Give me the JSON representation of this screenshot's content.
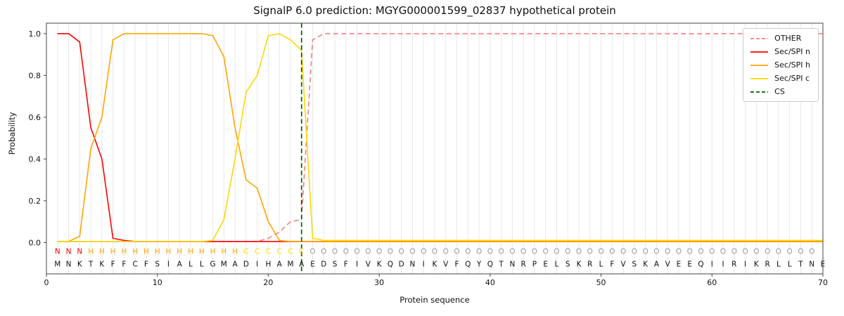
{
  "chart_data": {
    "type": "line",
    "title": "SignalP 6.0 prediction: MGYG000001599_02837 hypothetical protein",
    "xlabel": "Protein sequence",
    "ylabel": "Probability",
    "xlim": [
      0,
      70
    ],
    "ylim": [
      -0.15,
      1.05
    ],
    "xticks": [
      0,
      10,
      20,
      30,
      40,
      50,
      60,
      70
    ],
    "yticks": [
      0.0,
      0.2,
      0.4,
      0.6,
      0.8,
      1.0
    ],
    "grid": true,
    "legend_position": "upper right",
    "x_first": 1,
    "x_step": 1,
    "series": [
      {
        "name": "OTHER",
        "color": "#f08080",
        "dashed": true,
        "values": [
          0.005,
          0.005,
          0.005,
          0.005,
          0.005,
          0.005,
          0.005,
          0.005,
          0.005,
          0.005,
          0.005,
          0.005,
          0.005,
          0.005,
          0.005,
          0.005,
          0.005,
          0.005,
          0.005,
          0.02,
          0.05,
          0.1,
          0.11,
          0.97,
          1,
          1,
          1,
          1,
          1,
          1,
          1,
          1,
          1,
          1,
          1,
          1,
          1,
          1,
          1,
          1,
          1,
          1,
          1,
          1,
          1,
          1,
          1,
          1,
          1,
          1,
          1,
          1,
          1,
          1,
          1,
          1,
          1,
          1,
          1,
          1,
          1,
          1,
          1,
          1,
          1,
          1,
          1,
          1,
          1,
          1
        ]
      },
      {
        "name": "Sec/SPI n",
        "color": "#ff0000",
        "dashed": false,
        "values": [
          1,
          1,
          0.96,
          0.55,
          0.4,
          0.02,
          0.01,
          0.005,
          0.005,
          0.005,
          0.005,
          0.005,
          0.005,
          0.005,
          0.005,
          0.005,
          0.005,
          0.005,
          0.005,
          0.005,
          0.005,
          0.005,
          0.005,
          0.005,
          0.005,
          0.005,
          0.005,
          0.005,
          0.005,
          0.005,
          0.005,
          0.005,
          0.005,
          0.005,
          0.005,
          0.005,
          0.005,
          0.005,
          0.005,
          0.005,
          0.005,
          0.005,
          0.005,
          0.005,
          0.005,
          0.005,
          0.005,
          0.005,
          0.005,
          0.005,
          0.005,
          0.005,
          0.005,
          0.005,
          0.005,
          0.005,
          0.005,
          0.005,
          0.005,
          0.005,
          0.005,
          0.005,
          0.005,
          0.005,
          0.005,
          0.005,
          0.005,
          0.005,
          0.005,
          0.005
        ]
      },
      {
        "name": "Sec/SPI h",
        "color": "#ffa500",
        "dashed": false,
        "values": [
          0.005,
          0.005,
          0.03,
          0.45,
          0.6,
          0.97,
          1,
          1,
          1,
          1,
          1,
          1,
          1,
          1,
          0.99,
          0.89,
          0.55,
          0.3,
          0.26,
          0.1,
          0.01,
          0.005,
          0.005,
          0.005,
          0.005,
          0.005,
          0.005,
          0.005,
          0.005,
          0.005,
          0.005,
          0.005,
          0.005,
          0.005,
          0.005,
          0.005,
          0.005,
          0.005,
          0.005,
          0.005,
          0.005,
          0.005,
          0.005,
          0.005,
          0.005,
          0.005,
          0.005,
          0.005,
          0.005,
          0.005,
          0.005,
          0.005,
          0.005,
          0.005,
          0.005,
          0.005,
          0.005,
          0.005,
          0.005,
          0.005,
          0.005,
          0.005,
          0.005,
          0.005,
          0.005,
          0.005,
          0.005,
          0.005,
          0.005,
          0.005
        ]
      },
      {
        "name": "Sec/SPI c",
        "color": "#ffd700",
        "dashed": false,
        "values": [
          0.005,
          0.005,
          0.005,
          0.005,
          0.005,
          0.005,
          0.005,
          0.005,
          0.005,
          0.005,
          0.005,
          0.005,
          0.005,
          0.005,
          0.01,
          0.11,
          0.4,
          0.72,
          0.8,
          0.99,
          1,
          0.97,
          0.92,
          0.02,
          0.01,
          0.01,
          0.01,
          0.01,
          0.01,
          0.01,
          0.01,
          0.01,
          0.01,
          0.01,
          0.01,
          0.01,
          0.01,
          0.01,
          0.01,
          0.01,
          0.01,
          0.01,
          0.01,
          0.01,
          0.01,
          0.01,
          0.01,
          0.01,
          0.01,
          0.01,
          0.01,
          0.01,
          0.01,
          0.01,
          0.01,
          0.01,
          0.01,
          0.01,
          0.01,
          0.01,
          0.01,
          0.01,
          0.01,
          0.01,
          0.01,
          0.01,
          0.01,
          0.01,
          0.01,
          0.01
        ]
      }
    ],
    "cs_marker": {
      "name": "CS",
      "position": 23,
      "color": "#006400",
      "dashed": true
    },
    "sequence": "MNKTKFFCFSIALLGMADIHAMAEDSFIVKQDNIKVFQYQTNRPELSKRLFVSKAVEEQIIRIKRLLTNE",
    "region_labels": "NNNHHHHHHHHHHHHHHCCCCCCOOOOOOOOOOOOOOOOOOOOOOOOOOOOOOOOOOOOOOOOOOOOOO",
    "region_colors": {
      "N": "#ff0000",
      "H": "#ffa500",
      "C": "#ffd700",
      "O": "#999999"
    }
  }
}
